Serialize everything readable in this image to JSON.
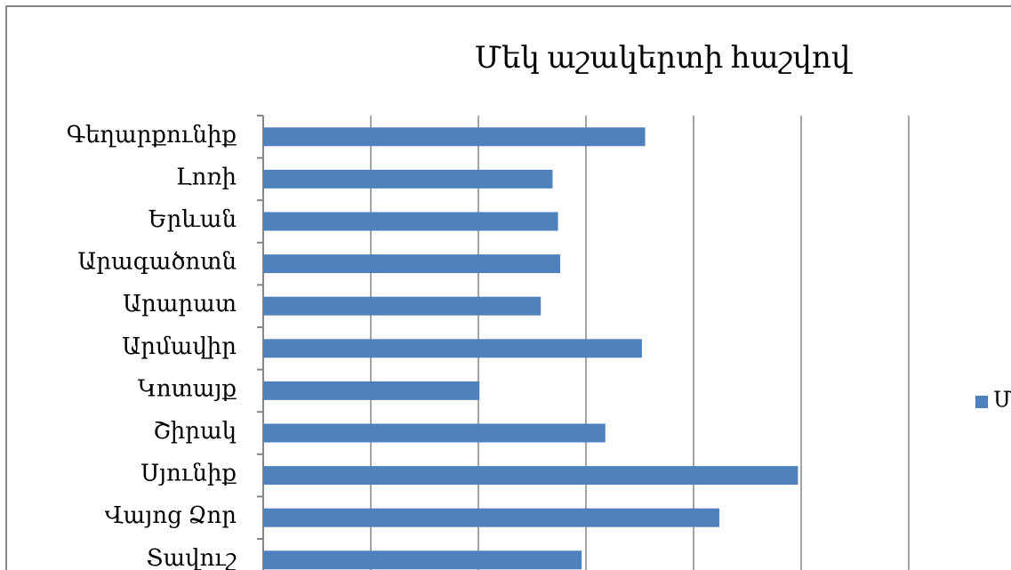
{
  "chart_data": {
    "type": "bar",
    "orientation": "horizontal",
    "title": "Մեկ աշակերտի հաշվով",
    "categories": [
      "Գեղարքունիք",
      "Լոռի",
      "Երևան",
      "Արագածոտն",
      "Արարատ",
      "Արմավիր",
      "Կոտայք",
      "Շիրակ",
      "Սյունիք",
      "Վայոց Ձոր",
      "Տավուշ"
    ],
    "series": [
      {
        "name": "Մ",
        "color": "#4f81bd",
        "values": [
          3.55,
          2.69,
          2.74,
          2.76,
          2.58,
          3.52,
          2.01,
          3.18,
          4.97,
          4.24,
          2.96
        ]
      }
    ],
    "xlim": [
      0,
      6
    ],
    "xticks": [
      0,
      1,
      2,
      3,
      4,
      5,
      6
    ],
    "grid": true,
    "legend": "right"
  }
}
